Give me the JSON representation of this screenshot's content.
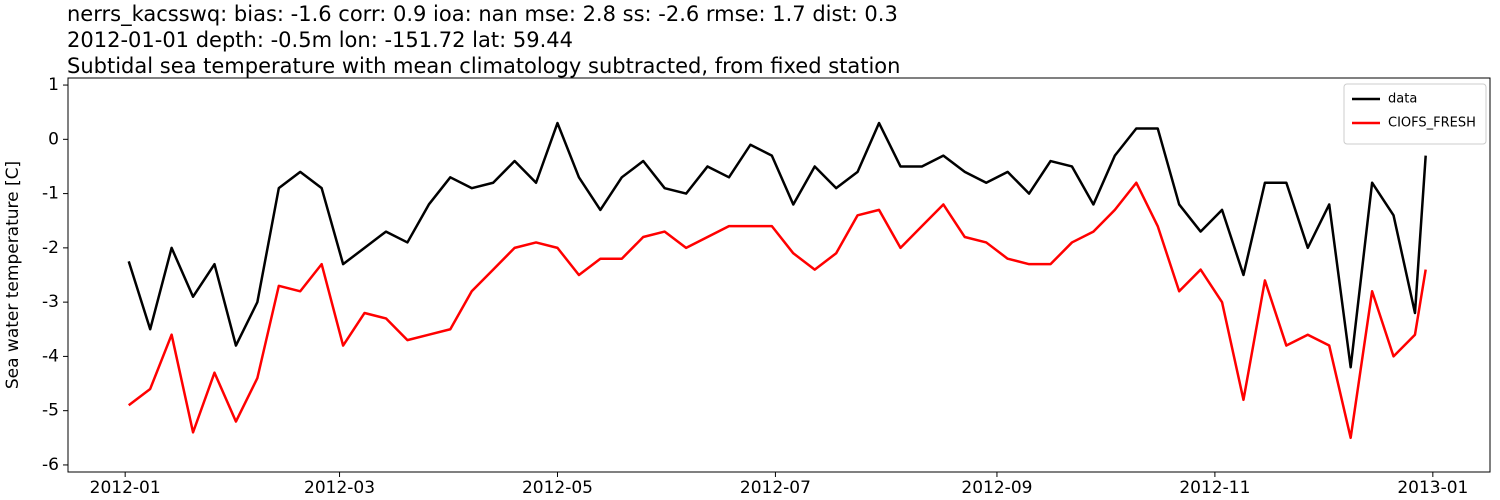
{
  "chart_data": {
    "type": "line",
    "title_lines": [
      "nerrs_kacsswq: bias: -1.6  corr: 0.9  ioa: nan  mse: 2.8  ss: -2.6  rmse: 1.7  dist: 0.3",
      "2012-01-01 depth: -0.5m lon: -151.72 lat: 59.44",
      "Subtidal sea temperature with mean climatology subtracted, from fixed station"
    ],
    "y_label": "Sea water temperature [C]",
    "x": [
      "2012-01-02",
      "2012-01-08",
      "2012-01-14",
      "2012-01-20",
      "2012-01-26",
      "2012-02-01",
      "2012-02-07",
      "2012-02-13",
      "2012-02-19",
      "2012-02-25",
      "2012-03-02",
      "2012-03-08",
      "2012-03-14",
      "2012-03-20",
      "2012-03-26",
      "2012-04-01",
      "2012-04-07",
      "2012-04-13",
      "2012-04-19",
      "2012-04-25",
      "2012-05-01",
      "2012-05-07",
      "2012-05-13",
      "2012-05-19",
      "2012-05-25",
      "2012-05-31",
      "2012-06-06",
      "2012-06-12",
      "2012-06-18",
      "2012-06-24",
      "2012-06-30",
      "2012-07-06",
      "2012-07-12",
      "2012-07-18",
      "2012-07-24",
      "2012-07-30",
      "2012-08-05",
      "2012-08-11",
      "2012-08-17",
      "2012-08-23",
      "2012-08-29",
      "2012-09-04",
      "2012-09-10",
      "2012-09-16",
      "2012-09-22",
      "2012-09-28",
      "2012-10-04",
      "2012-10-10",
      "2012-10-16",
      "2012-10-22",
      "2012-10-28",
      "2012-11-03",
      "2012-11-09",
      "2012-11-15",
      "2012-11-21",
      "2012-11-27",
      "2012-12-03",
      "2012-12-09",
      "2012-12-15",
      "2012-12-21",
      "2012-12-27",
      "2012-12-30"
    ],
    "series": [
      {
        "name": "data",
        "color": "#000000",
        "values": [
          -2.25,
          -3.5,
          -2.0,
          -2.9,
          -2.3,
          -3.8,
          -3.0,
          -0.9,
          -0.6,
          -0.9,
          -2.3,
          -2.0,
          -1.7,
          -1.9,
          -1.2,
          -0.7,
          -0.9,
          -0.8,
          -0.4,
          -0.8,
          0.3,
          -0.7,
          -1.3,
          -0.7,
          -0.4,
          -0.9,
          -1.0,
          -0.5,
          -0.7,
          -0.1,
          -0.3,
          -1.2,
          -0.5,
          -0.9,
          -0.6,
          0.3,
          -0.5,
          -0.5,
          -0.3,
          -0.6,
          -0.8,
          -0.6,
          -1.0,
          -0.4,
          -0.5,
          -1.2,
          -0.3,
          0.2,
          0.2,
          -1.2,
          -1.7,
          -1.3,
          -2.5,
          -0.8,
          -0.8,
          -2.0,
          -1.2,
          -4.2,
          -0.8,
          -1.4,
          -3.2,
          -0.3
        ]
      },
      {
        "name": "CIOFS_FRESH",
        "color": "#ff0000",
        "values": [
          -4.9,
          -4.6,
          -3.6,
          -5.4,
          -4.3,
          -5.2,
          -4.4,
          -2.7,
          -2.8,
          -2.3,
          -3.8,
          -3.2,
          -3.3,
          -3.7,
          -3.6,
          -3.5,
          -2.8,
          -2.4,
          -2.0,
          -1.9,
          -2.0,
          -2.5,
          -2.2,
          -2.2,
          -1.8,
          -1.7,
          -2.0,
          -1.8,
          -1.6,
          -1.6,
          -1.6,
          -2.1,
          -2.4,
          -2.1,
          -1.4,
          -1.3,
          -2.0,
          -1.6,
          -1.2,
          -1.8,
          -1.9,
          -2.2,
          -2.3,
          -2.3,
          -1.9,
          -1.7,
          -1.3,
          -0.8,
          -1.6,
          -2.8,
          -2.4,
          -3.0,
          -4.8,
          -2.6,
          -3.8,
          -3.6,
          -3.8,
          -5.5,
          -2.8,
          -4.0,
          -3.6,
          -2.4
        ]
      }
    ],
    "xlim": [
      "2011-12-16",
      "2013-01-17"
    ],
    "xticks": [
      {
        "value": "2012-01-01",
        "label": "2012-01"
      },
      {
        "value": "2012-03-01",
        "label": "2012-03"
      },
      {
        "value": "2012-05-01",
        "label": "2012-05"
      },
      {
        "value": "2012-07-01",
        "label": "2012-07"
      },
      {
        "value": "2012-09-01",
        "label": "2012-09"
      },
      {
        "value": "2012-11-01",
        "label": "2012-11"
      },
      {
        "value": "2013-01-01",
        "label": "2013-01"
      }
    ],
    "ylim": [
      -6.13,
      1.13
    ],
    "yticks": [
      -6,
      -5,
      -4,
      -3,
      -2,
      -1,
      0,
      1
    ],
    "legend": "upper right"
  }
}
